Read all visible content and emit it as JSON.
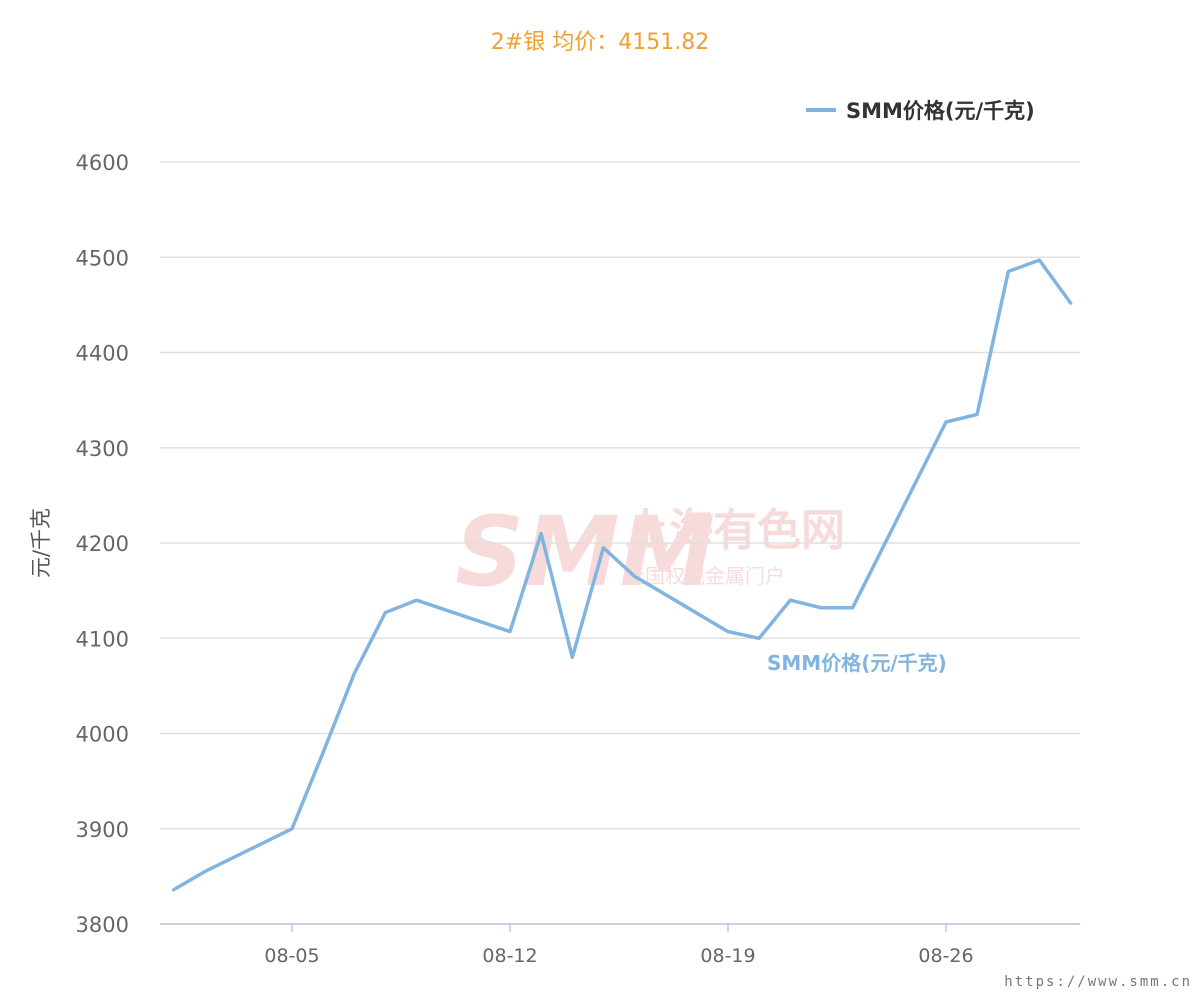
{
  "header": {
    "title": "2#银 均价：4151.82"
  },
  "watermark": {
    "logo": "SMM",
    "name": "上海有色网",
    "tagline": "全国权威金属门户"
  },
  "source_url": "https://www.smm.cn",
  "chart_data": {
    "type": "line",
    "ylabel": "元/千克",
    "ylim": [
      3800,
      4600
    ],
    "yticks": [
      3800,
      3900,
      4000,
      4100,
      4200,
      4300,
      4400,
      4500,
      4600
    ],
    "xticks": [
      {
        "day": 5,
        "label": "08-05"
      },
      {
        "day": 12,
        "label": "08-12"
      },
      {
        "day": 19,
        "label": "08-19"
      },
      {
        "day": 26,
        "label": "08-26"
      }
    ],
    "legend": {
      "position": "top-right"
    },
    "grid": true,
    "color": "#82b4e0",
    "series": [
      {
        "name": "SMM价格(元/千克)",
        "points": [
          {
            "day": 1.2,
            "value": 3836
          },
          {
            "day": 2.2,
            "value": 3855
          },
          {
            "day": 5.0,
            "value": 3900
          },
          {
            "day": 6.0,
            "value": 3980
          },
          {
            "day": 7.0,
            "value": 4063
          },
          {
            "day": 8.0,
            "value": 4127
          },
          {
            "day": 9.0,
            "value": 4140
          },
          {
            "day": 12.0,
            "value": 4107
          },
          {
            "day": 13.0,
            "value": 4210
          },
          {
            "day": 14.0,
            "value": 4080
          },
          {
            "day": 15.0,
            "value": 4195
          },
          {
            "day": 16.0,
            "value": 4165
          },
          {
            "day": 19.0,
            "value": 4107
          },
          {
            "day": 20.0,
            "value": 4100
          },
          {
            "day": 21.0,
            "value": 4140
          },
          {
            "day": 22.0,
            "value": 4132
          },
          {
            "day": 23.0,
            "value": 4132
          },
          {
            "day": 26.0,
            "value": 4327
          },
          {
            "day": 27.0,
            "value": 4335
          },
          {
            "day": 28.0,
            "value": 4485
          },
          {
            "day": 29.0,
            "value": 4497
          },
          {
            "day": 30.0,
            "value": 4452
          }
        ]
      }
    ],
    "annotation": "SMM价格(元/千克)"
  }
}
